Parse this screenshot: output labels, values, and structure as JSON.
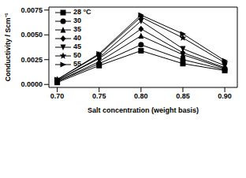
{
  "chart_data": {
    "type": "line",
    "x_label": "Salt concentration (weight basis)",
    "y_label": "Conductivity / Scm⁻¹",
    "x": [
      0.7,
      0.75,
      0.8,
      0.85,
      0.9
    ],
    "xlim": [
      0.69,
      0.915
    ],
    "xticks": [
      {
        "value": 0.7,
        "label": "0.70"
      },
      {
        "value": 0.75,
        "label": "0.75"
      },
      {
        "value": 0.8,
        "label": "0.80"
      },
      {
        "value": 0.85,
        "label": "0.85"
      },
      {
        "value": 0.9,
        "label": "0.90"
      }
    ],
    "ylim": [
      -0.0003,
      0.0078
    ],
    "yticks": [
      {
        "value": 0,
        "label": "0.0000"
      },
      0.0025,
      {
        "value": 0.005,
        "label": "0.0050"
      },
      0.0075
    ],
    "legend": "upper left",
    "grid": false,
    "series": [
      {
        "name": "28 °C",
        "color": "#000000",
        "marker": "square",
        "values": [
          0.0002,
          0.0019,
          0.0034,
          0.0021,
          0.0014
        ]
      },
      {
        "name": "30",
        "color": "#000000",
        "marker": "circle",
        "values": [
          0.0003,
          0.0021,
          0.004,
          0.0025,
          0.0015
        ]
      },
      {
        "name": "35",
        "color": "#000000",
        "marker": "triangle",
        "values": [
          0.0003,
          0.0023,
          0.0049,
          0.003,
          0.0016
        ]
      },
      {
        "name": "40",
        "color": "#000000",
        "marker": "diamond",
        "values": [
          0.0004,
          0.0026,
          0.0056,
          0.0032,
          0.0017
        ]
      },
      {
        "name": "45",
        "color": "#000000",
        "marker": "triangle-down",
        "values": [
          0.0004,
          0.0027,
          0.0064,
          0.0036,
          0.0019
        ]
      },
      {
        "name": "50",
        "color": "#000000",
        "marker": "star",
        "values": [
          0.0005,
          0.003,
          0.0068,
          0.0047,
          0.0022
        ]
      },
      {
        "name": "55",
        "color": "#000000",
        "marker": "triangle-right",
        "values": [
          0.0005,
          0.0031,
          0.007,
          0.0051,
          0.0024
        ]
      }
    ]
  }
}
